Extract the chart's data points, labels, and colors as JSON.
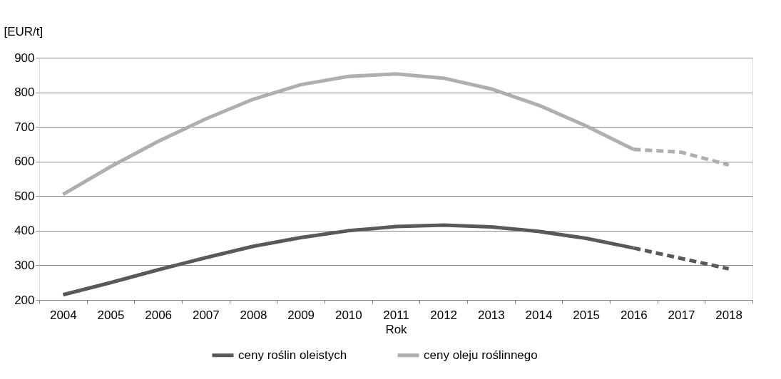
{
  "chart_data": {
    "type": "line",
    "ylabel": "[EUR/t]",
    "xlabel": "Rok",
    "categories": [
      "2004",
      "2005",
      "2006",
      "2007",
      "2008",
      "2009",
      "2010",
      "2011",
      "2012",
      "2013",
      "2014",
      "2015",
      "2016",
      "2017",
      "2018"
    ],
    "ylim": [
      200,
      900
    ],
    "yticks": [
      200,
      300,
      400,
      500,
      600,
      700,
      800,
      900
    ],
    "grid": "y",
    "legend": "bottom",
    "series": [
      {
        "name": "ceny roślin oleistych",
        "color": "#595959",
        "line_style": "solid",
        "values": [
          215,
          250,
          287,
          322,
          355,
          380,
          400,
          412,
          416,
          411,
          398,
          378,
          350,
          null,
          null
        ]
      },
      {
        "name": "ceny oleju roślinnego",
        "color": "#afafaf",
        "line_style": "solid",
        "values": [
          505,
          585,
          658,
          723,
          780,
          822,
          846,
          853,
          841,
          810,
          763,
          703,
          635,
          null,
          null
        ]
      },
      {
        "color": "#595959",
        "line_style": "dashed",
        "values": [
          null,
          null,
          null,
          null,
          null,
          null,
          null,
          null,
          null,
          null,
          null,
          null,
          350,
          320,
          290
        ]
      },
      {
        "color": "#afafaf",
        "line_style": "dashed",
        "values": [
          null,
          null,
          null,
          null,
          null,
          null,
          null,
          null,
          null,
          null,
          null,
          null,
          635,
          627,
          590
        ]
      }
    ]
  }
}
